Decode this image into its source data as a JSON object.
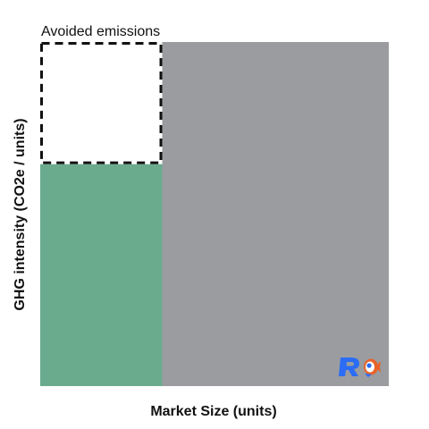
{
  "chart_data": {
    "type": "area",
    "title": "",
    "xlabel": "Market Size (units)",
    "ylabel": "GHG intensity  (CO2e / units)",
    "grid": false,
    "regions": [
      {
        "name": "company-product",
        "x": [
          0,
          0.35
        ],
        "y": [
          0,
          0.645
        ],
        "color": "#6aab8e",
        "style": "filled"
      },
      {
        "name": "avoided-emissions",
        "label": "Avoided emissions",
        "x": [
          0,
          0.35
        ],
        "y": [
          0.645,
          1
        ],
        "color": "#ffffff",
        "style": "dashed-outline"
      },
      {
        "name": "market",
        "x": [
          0.35,
          1
        ],
        "y": [
          0,
          1
        ],
        "color": "#9b9c9f",
        "style": "filled"
      }
    ]
  },
  "logo": {
    "name": "brand-logo",
    "colors": [
      "#2a6df4",
      "#e8632b"
    ]
  }
}
